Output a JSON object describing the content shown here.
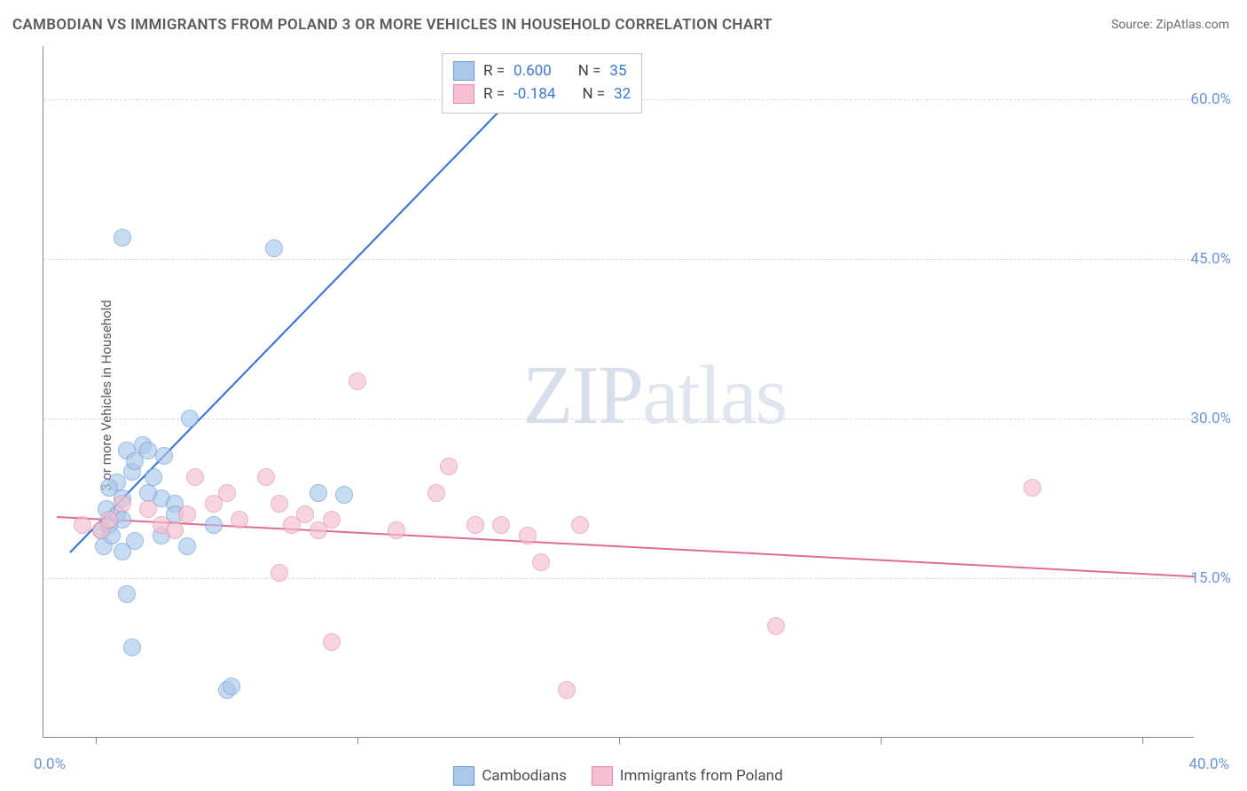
{
  "title": "CAMBODIAN VS IMMIGRANTS FROM POLAND 3 OR MORE VEHICLES IN HOUSEHOLD CORRELATION CHART",
  "source_label": "Source: ",
  "source_value": "ZipAtlas.com",
  "y_axis_label": "3 or more Vehicles in Household",
  "watermark_zip": "ZIP",
  "watermark_atlas": "atlas",
  "plot": {
    "x_min": -2,
    "x_max": 42,
    "y_min": 0,
    "y_max": 65,
    "y_gridlines": [
      15,
      30,
      45,
      60
    ],
    "y_tick_labels": [
      "15.0%",
      "30.0%",
      "45.0%",
      "60.0%"
    ],
    "x_ticks": [
      0,
      10,
      20,
      30,
      40
    ],
    "x_origin_label": "0.0%",
    "x_end_label": "40.0%",
    "background_color": "#ffffff",
    "grid_color": "#d8d8d8",
    "axis_color": "#888888"
  },
  "series": {
    "cambodians": {
      "label": "Cambodians",
      "fill": "#aac8ea",
      "stroke": "#6a95d8",
      "fill_opacity": 0.65,
      "r_value": "0.600",
      "n_value": "35",
      "trend": {
        "x1": -1,
        "y1": 17.5,
        "x2": 17,
        "y2": 63,
        "color": "#2f6fd0"
      },
      "points": [
        [
          0.2,
          19.5
        ],
        [
          0.3,
          18
        ],
        [
          0.5,
          20
        ],
        [
          0.6,
          19
        ],
        [
          0.8,
          21
        ],
        [
          0.8,
          24
        ],
        [
          1.0,
          17.5
        ],
        [
          1.0,
          22.5
        ],
        [
          1.2,
          27
        ],
        [
          1.2,
          13.5
        ],
        [
          1.4,
          25
        ],
        [
          1.5,
          18.5
        ],
        [
          1.5,
          26
        ],
        [
          1.8,
          27.5
        ],
        [
          2.0,
          27
        ],
        [
          2.2,
          24.5
        ],
        [
          2.5,
          22.5
        ],
        [
          2.6,
          26.5
        ],
        [
          3.0,
          22
        ],
        [
          3.0,
          21
        ],
        [
          3.5,
          18
        ],
        [
          3.6,
          30
        ],
        [
          4.5,
          20
        ],
        [
          5.0,
          4.5
        ],
        [
          5.2,
          4.8
        ],
        [
          1.0,
          47
        ],
        [
          6.8,
          46
        ],
        [
          1.4,
          8.5
        ],
        [
          0.5,
          23.5
        ],
        [
          2.0,
          23
        ],
        [
          8.5,
          23
        ],
        [
          9.5,
          22.8
        ],
        [
          2.5,
          19
        ],
        [
          0.4,
          21.5
        ],
        [
          1.0,
          20.5
        ]
      ]
    },
    "poland": {
      "label": "Immigants from Poland",
      "label_correct": "Immigrants from Poland",
      "fill": "#f4c0cf",
      "stroke": "#e68aa8",
      "fill_opacity": 0.65,
      "r_value": "-0.184",
      "n_value": "32",
      "trend": {
        "x1": -1.5,
        "y1": 20.8,
        "x2": 42,
        "y2": 15.2,
        "color": "#e06c94"
      },
      "points": [
        [
          -0.5,
          20
        ],
        [
          0.2,
          19.5
        ],
        [
          0.5,
          20.5
        ],
        [
          1.0,
          22
        ],
        [
          2.0,
          21.5
        ],
        [
          2.5,
          20
        ],
        [
          3.0,
          19.5
        ],
        [
          3.5,
          21
        ],
        [
          3.8,
          24.5
        ],
        [
          4.5,
          22
        ],
        [
          5.0,
          23
        ],
        [
          5.5,
          20.5
        ],
        [
          6.5,
          24.5
        ],
        [
          7.0,
          22
        ],
        [
          7.5,
          20
        ],
        [
          8.0,
          21
        ],
        [
          8.5,
          19.5
        ],
        [
          9.0,
          20.5
        ],
        [
          10.0,
          33.5
        ],
        [
          7.0,
          15.5
        ],
        [
          9.0,
          9
        ],
        [
          13.5,
          25.5
        ],
        [
          13.0,
          23
        ],
        [
          14.5,
          20
        ],
        [
          15.5,
          20
        ],
        [
          16.5,
          19
        ],
        [
          18.0,
          4.5
        ],
        [
          17.0,
          16.5
        ],
        [
          18.5,
          20
        ],
        [
          26.0,
          10.5
        ],
        [
          35.8,
          23.5
        ],
        [
          11.5,
          19.5
        ]
      ]
    }
  },
  "stats_box": {
    "r_label": "R =",
    "n_label": "N ="
  },
  "marker_radius": 10
}
